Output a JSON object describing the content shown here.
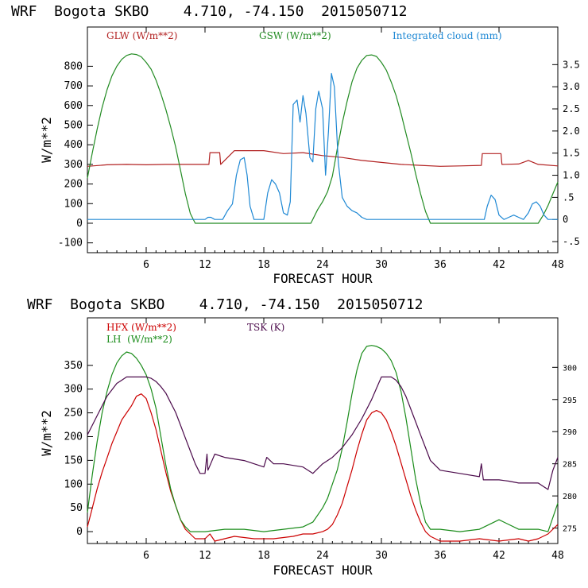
{
  "chart_data": [
    {
      "type": "line",
      "title": "WRF  Bogota SKBO    4.710, -74.150  2015050712",
      "xlabel": "FORECAST HOUR",
      "ylabel": "W/m**2",
      "xlim": [
        0,
        48
      ],
      "ylim": [
        -150,
        1000
      ],
      "y2lim": [
        -0.75,
        4.35
      ],
      "xticks": [
        6,
        12,
        18,
        24,
        30,
        36,
        42,
        48
      ],
      "yticks": [
        -100,
        0,
        100,
        200,
        300,
        400,
        500,
        600,
        700,
        800
      ],
      "ytick_labels": [
        "-100",
        "0",
        "100",
        "200",
        "300",
        "400",
        "500",
        "600",
        "700",
        "800"
      ],
      "y2ticks": [
        -0.5,
        0,
        0.5,
        1.0,
        1.5,
        2.0,
        2.5,
        3.0,
        3.5
      ],
      "y2tick_labels": [
        "-.5",
        "0",
        ".5",
        "1.0",
        "1.5",
        "2.0",
        "2.5",
        "3.0",
        "3.5"
      ],
      "series": [
        {
          "name": "GLW (W/m**2)",
          "axis": "left",
          "color": "#b22222",
          "x": [
            0,
            2,
            4,
            6,
            8,
            10,
            11.8,
            12.4,
            12.5,
            13.5,
            13.6,
            15,
            18,
            20,
            22,
            24,
            26,
            28,
            30,
            32,
            34,
            36,
            38,
            40.2,
            40.3,
            42.2,
            42.3,
            44,
            45,
            46,
            48
          ],
          "y": [
            290,
            298,
            300,
            298,
            300,
            300,
            300,
            300,
            360,
            360,
            300,
            370,
            370,
            355,
            360,
            345,
            335,
            320,
            310,
            300,
            295,
            290,
            292,
            295,
            355,
            355,
            300,
            302,
            320,
            300,
            292
          ]
        },
        {
          "name": "GSW (W/m**2)",
          "axis": "left",
          "color": "#228b22",
          "x": [
            0,
            0.5,
            1,
            1.5,
            2,
            2.5,
            3,
            3.5,
            4,
            4.5,
            5,
            5.5,
            6,
            6.5,
            7,
            7.5,
            8,
            8.5,
            9,
            9.5,
            10,
            10.5,
            11,
            12,
            15,
            18,
            21,
            22.8,
            23.5,
            24,
            24.5,
            25,
            25.5,
            26,
            26.5,
            27,
            27.5,
            28,
            28.5,
            29,
            29.5,
            30,
            30.5,
            31,
            31.5,
            32,
            32.5,
            33,
            33.5,
            34,
            34.5,
            35,
            36,
            40,
            44,
            46,
            46.5,
            47,
            47.5,
            48
          ],
          "y": [
            230,
            360,
            480,
            590,
            680,
            750,
            800,
            835,
            855,
            863,
            860,
            848,
            820,
            785,
            730,
            660,
            580,
            490,
            390,
            270,
            150,
            50,
            0,
            0,
            0,
            0,
            0,
            0,
            70,
            110,
            160,
            240,
            380,
            510,
            620,
            720,
            790,
            830,
            855,
            858,
            850,
            820,
            780,
            720,
            650,
            560,
            460,
            360,
            250,
            150,
            60,
            0,
            0,
            0,
            0,
            0,
            40,
            90,
            150,
            210
          ]
        },
        {
          "name": "Integrated cloud (mm)",
          "axis": "right",
          "color": "#1e88d4",
          "x": [
            0,
            12,
            12.3,
            12.6,
            13,
            13.8,
            14.3,
            14.8,
            15.2,
            15.6,
            16,
            16.3,
            16.6,
            17,
            17.3,
            18,
            18.4,
            18.8,
            19.2,
            19.6,
            20,
            20.4,
            20.7,
            21,
            21.4,
            21.7,
            22,
            22.3,
            22.7,
            23,
            23.3,
            23.6,
            24,
            24.3,
            24.6,
            24.9,
            25.2,
            25.6,
            26,
            26.5,
            27,
            27.5,
            28,
            28.5,
            29,
            40.5,
            40.8,
            41.2,
            41.6,
            42,
            42.5,
            43,
            43.5,
            44,
            44.5,
            45,
            45.4,
            45.8,
            46.2,
            46.6,
            47,
            48
          ],
          "y": [
            0,
            0,
            0.05,
            0.05,
            0,
            0,
            0.2,
            0.35,
            1.0,
            1.35,
            1.4,
            1.0,
            0.3,
            0,
            0,
            0,
            0.6,
            0.9,
            0.8,
            0.6,
            0.15,
            0.1,
            0.4,
            2.6,
            2.7,
            2.2,
            2.8,
            2.4,
            1.4,
            1.3,
            2.5,
            2.9,
            2.5,
            1.0,
            2.0,
            3.3,
            3.0,
            1.3,
            0.5,
            0.3,
            0.2,
            0.15,
            0.05,
            0,
            0,
            0,
            0.3,
            0.55,
            0.45,
            0.1,
            0,
            0.05,
            0.1,
            0.05,
            0,
            0.15,
            0.35,
            0.4,
            0.3,
            0.1,
            0,
            0
          ]
        }
      ],
      "legend": [
        {
          "label": "GLW (W/m**2)",
          "color": "#b22222"
        },
        {
          "label": "GSW (W/m**2)",
          "color": "#228b22"
        },
        {
          "label": "Integrated cloud (mm)",
          "color": "#1e88d4"
        }
      ]
    },
    {
      "type": "line",
      "title": "WRF  Bogota SKBO    4.710, -74.150  2015050712",
      "xlabel": "FORECAST HOUR",
      "ylabel": "W/m**2",
      "xlim": [
        0,
        48
      ],
      "ylim": [
        -25,
        450
      ],
      "y2lim": [
        272.6,
        307.7
      ],
      "xticks": [
        6,
        12,
        18,
        24,
        30,
        36,
        42,
        48
      ],
      "yticks": [
        0,
        50,
        100,
        150,
        200,
        250,
        300,
        350
      ],
      "ytick_labels": [
        "0",
        "50",
        "100",
        "150",
        "200",
        "250",
        "300",
        "350"
      ],
      "y2ticks": [
        275,
        280,
        285,
        290,
        295,
        300
      ],
      "y2tick_labels": [
        "275",
        "280",
        "285",
        "290",
        "295",
        "300"
      ],
      "series": [
        {
          "name": "HFX (W/m**2)",
          "axis": "left",
          "color": "#cc0000",
          "x": [
            0,
            0.5,
            1,
            1.5,
            2,
            2.5,
            3,
            3.5,
            4,
            4.5,
            5,
            5.5,
            6,
            6.5,
            7,
            7.5,
            8,
            8.5,
            9,
            9.5,
            10,
            10.5,
            11,
            11.5,
            12,
            12.5,
            13,
            15,
            17,
            19,
            21,
            22,
            23,
            24,
            24.5,
            25,
            25.5,
            26,
            26.5,
            27,
            27.5,
            28,
            28.5,
            29,
            29.5,
            30,
            30.5,
            31,
            31.5,
            32,
            32.5,
            33,
            33.5,
            34,
            34.5,
            35,
            36,
            38,
            40,
            42,
            44,
            45,
            46,
            47,
            48
          ],
          "y": [
            10,
            50,
            90,
            125,
            155,
            185,
            210,
            235,
            250,
            265,
            285,
            290,
            280,
            250,
            215,
            170,
            125,
            85,
            55,
            25,
            5,
            -5,
            -15,
            -15,
            -15,
            -5,
            -20,
            -10,
            -15,
            -15,
            -10,
            -5,
            -5,
            0,
            5,
            15,
            35,
            60,
            95,
            130,
            170,
            205,
            235,
            250,
            255,
            250,
            235,
            210,
            180,
            145,
            110,
            75,
            45,
            20,
            0,
            -10,
            -20,
            -20,
            -15,
            -20,
            -15,
            -20,
            -15,
            -5,
            15
          ]
        },
        {
          "name": "LH  (W/m**2)",
          "axis": "left",
          "color": "#1a8c1a",
          "x": [
            0,
            0.5,
            1,
            1.5,
            2,
            2.5,
            3,
            3.5,
            4,
            4.5,
            5,
            5.5,
            6,
            6.5,
            7,
            7.5,
            8,
            8.5,
            9,
            9.5,
            10,
            10.5,
            11,
            12,
            14,
            16,
            18,
            20,
            22,
            23,
            24,
            24.5,
            25,
            25.5,
            26,
            26.5,
            27,
            27.5,
            28,
            28.5,
            29,
            29.5,
            30,
            30.5,
            31,
            31.5,
            32,
            32.5,
            33,
            33.5,
            34,
            34.5,
            35,
            35.5,
            36,
            38,
            40,
            41,
            42,
            44,
            46,
            47,
            48
          ],
          "y": [
            40,
            120,
            190,
            250,
            295,
            330,
            355,
            370,
            378,
            375,
            365,
            350,
            330,
            300,
            260,
            200,
            140,
            90,
            55,
            25,
            10,
            0,
            0,
            0,
            5,
            5,
            0,
            5,
            10,
            20,
            50,
            70,
            100,
            130,
            175,
            230,
            290,
            340,
            375,
            390,
            392,
            390,
            385,
            375,
            360,
            335,
            295,
            240,
            175,
            110,
            60,
            20,
            5,
            5,
            5,
            0,
            5,
            15,
            25,
            5,
            5,
            0,
            60
          ]
        },
        {
          "name": "TSK (K)",
          "axis": "right",
          "color": "#4b0a4b",
          "x": [
            0,
            0.5,
            1,
            1.5,
            2,
            2.5,
            3,
            3.5,
            4,
            4.5,
            5,
            5.5,
            6,
            6.5,
            7,
            7.5,
            8,
            8.5,
            9,
            9.5,
            10,
            10.5,
            11,
            11.5,
            12,
            12.2,
            12.3,
            13,
            14,
            16,
            18,
            18.3,
            19,
            20,
            22,
            23,
            24,
            25,
            26,
            27,
            28,
            29,
            30,
            30.5,
            31,
            31.5,
            32,
            32.5,
            33,
            33.5,
            34,
            34.5,
            35,
            36,
            38,
            40,
            40.2,
            40.4,
            41,
            42,
            43,
            44,
            45,
            46,
            46.5,
            47,
            47.5,
            48
          ],
          "y": [
            289.5,
            291,
            292.5,
            294,
            295.5,
            296.5,
            297.5,
            298,
            298.5,
            298.5,
            298.5,
            298.5,
            298.5,
            298.3,
            297.8,
            297,
            296,
            294.5,
            293,
            291,
            289,
            287,
            285,
            283.5,
            283.5,
            286.5,
            284,
            286.5,
            286,
            285.5,
            284.5,
            286,
            285,
            285,
            284.5,
            283.5,
            285,
            286,
            287.5,
            289.5,
            292,
            295,
            298.5,
            298.5,
            298.5,
            298,
            297,
            295.5,
            293.5,
            291.5,
            289.5,
            287.5,
            285.5,
            284,
            283.5,
            283,
            285,
            282.5,
            282.5,
            282.5,
            282.3,
            282,
            282,
            282,
            281.5,
            281,
            284,
            286
          ]
        }
      ],
      "legend": [
        {
          "label": "HFX (W/m**2)",
          "color": "#cc0000"
        },
        {
          "label": "LH  (W/m**2)",
          "color": "#1a8c1a"
        },
        {
          "label": "TSK (K)",
          "color": "#4b0a4b"
        }
      ]
    }
  ]
}
